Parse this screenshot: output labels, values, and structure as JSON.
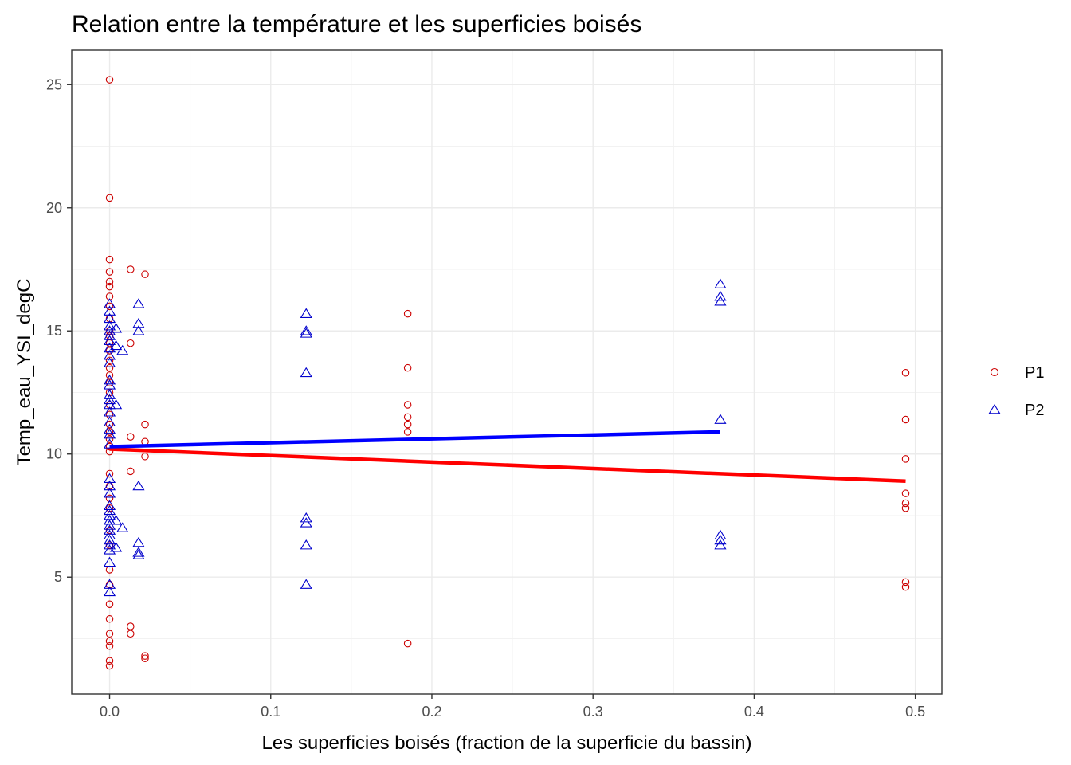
{
  "chart_data": {
    "type": "scatter",
    "title": "Relation entre la température et les superficies boisés",
    "xlabel": "Les superficies boisés (fraction de la superficie du bassin)",
    "ylabel": "Temp_eau_YSI_degC",
    "xlim": [
      -0.0235,
      0.5165
    ],
    "ylim": [
      0.25,
      26.4
    ],
    "x_ticks": [
      0.0,
      0.1,
      0.2,
      0.3,
      0.4,
      0.5
    ],
    "x_tick_labels": [
      "0.0",
      "0.1",
      "0.2",
      "0.3",
      "0.4",
      "0.5"
    ],
    "y_ticks": [
      5,
      10,
      15,
      20,
      25
    ],
    "y_tick_labels": [
      "5",
      "10",
      "15",
      "20",
      "25"
    ],
    "grid": true,
    "legend_position": "right",
    "series": [
      {
        "name": "P1",
        "marker": "circle",
        "color": "#cc0000",
        "points": [
          [
            0,
            25.2
          ],
          [
            0,
            20.4
          ],
          [
            0,
            17.9
          ],
          [
            0,
            17.4
          ],
          [
            0,
            17.0
          ],
          [
            0,
            16.8
          ],
          [
            0,
            16.4
          ],
          [
            0,
            16.0
          ],
          [
            0,
            15.5
          ],
          [
            0,
            15.0
          ],
          [
            0,
            14.8
          ],
          [
            0,
            14.5
          ],
          [
            0,
            14.2
          ],
          [
            0,
            13.8
          ],
          [
            0,
            13.5
          ],
          [
            0,
            13.2
          ],
          [
            0,
            12.9
          ],
          [
            0,
            12.5
          ],
          [
            0,
            12.0
          ],
          [
            0,
            11.6
          ],
          [
            0,
            11.2
          ],
          [
            0,
            10.9
          ],
          [
            0,
            10.6
          ],
          [
            0,
            10.3
          ],
          [
            0,
            10.1
          ],
          [
            0,
            9.2
          ],
          [
            0,
            8.7
          ],
          [
            0,
            8.2
          ],
          [
            0,
            7.8
          ],
          [
            0,
            6.9
          ],
          [
            0,
            6.3
          ],
          [
            0,
            5.3
          ],
          [
            0,
            4.7
          ],
          [
            0,
            3.9
          ],
          [
            0,
            3.3
          ],
          [
            0,
            2.7
          ],
          [
            0,
            2.4
          ],
          [
            0,
            2.2
          ],
          [
            0,
            1.6
          ],
          [
            0,
            1.4
          ],
          [
            0.013,
            17.5
          ],
          [
            0.013,
            14.5
          ],
          [
            0.013,
            10.7
          ],
          [
            0.013,
            9.3
          ],
          [
            0.013,
            3.0
          ],
          [
            0.013,
            2.7
          ],
          [
            0.022,
            17.3
          ],
          [
            0.022,
            11.2
          ],
          [
            0.022,
            10.5
          ],
          [
            0.022,
            9.9
          ],
          [
            0.022,
            1.8
          ],
          [
            0.022,
            1.7
          ],
          [
            0.185,
            15.7
          ],
          [
            0.185,
            13.5
          ],
          [
            0.185,
            12.0
          ],
          [
            0.185,
            11.5
          ],
          [
            0.185,
            11.2
          ],
          [
            0.185,
            10.9
          ],
          [
            0.185,
            2.3
          ],
          [
            0.494,
            13.3
          ],
          [
            0.494,
            11.4
          ],
          [
            0.494,
            9.8
          ],
          [
            0.494,
            8.4
          ],
          [
            0.494,
            8.0
          ],
          [
            0.494,
            7.8
          ],
          [
            0.494,
            4.8
          ],
          [
            0.494,
            4.6
          ]
        ],
        "fit": [
          [
            0,
            10.2
          ],
          [
            0.494,
            8.9
          ]
        ],
        "fit_color": "#ff0000"
      },
      {
        "name": "P2",
        "marker": "triangle",
        "color": "#0000cc",
        "points": [
          [
            0,
            16.1
          ],
          [
            0,
            15.8
          ],
          [
            0,
            15.5
          ],
          [
            0,
            15.2
          ],
          [
            0,
            15.0
          ],
          [
            0,
            14.8
          ],
          [
            0,
            14.6
          ],
          [
            0,
            14.3
          ],
          [
            0,
            14.0
          ],
          [
            0,
            13.7
          ],
          [
            0,
            13.0
          ],
          [
            0,
            12.8
          ],
          [
            0,
            12.4
          ],
          [
            0,
            12.2
          ],
          [
            0,
            12.0
          ],
          [
            0,
            11.7
          ],
          [
            0,
            11.3
          ],
          [
            0,
            11.0
          ],
          [
            0,
            10.8
          ],
          [
            0,
            10.4
          ],
          [
            0,
            9.0
          ],
          [
            0,
            8.7
          ],
          [
            0,
            8.4
          ],
          [
            0,
            7.9
          ],
          [
            0,
            7.7
          ],
          [
            0,
            7.5
          ],
          [
            0,
            7.3
          ],
          [
            0,
            7.1
          ],
          [
            0,
            6.9
          ],
          [
            0,
            6.7
          ],
          [
            0,
            6.5
          ],
          [
            0,
            6.3
          ],
          [
            0,
            6.1
          ],
          [
            0,
            5.6
          ],
          [
            0,
            4.7
          ],
          [
            0,
            4.4
          ],
          [
            0.004,
            15.1
          ],
          [
            0.004,
            14.4
          ],
          [
            0.004,
            12.0
          ],
          [
            0.004,
            7.3
          ],
          [
            0.004,
            6.2
          ],
          [
            0.008,
            14.2
          ],
          [
            0.008,
            7.0
          ],
          [
            0.018,
            16.1
          ],
          [
            0.018,
            15.3
          ],
          [
            0.018,
            15.0
          ],
          [
            0.018,
            8.7
          ],
          [
            0.018,
            6.4
          ],
          [
            0.018,
            6.0
          ],
          [
            0.018,
            5.9
          ],
          [
            0.122,
            15.7
          ],
          [
            0.122,
            15.0
          ],
          [
            0.122,
            14.9
          ],
          [
            0.122,
            13.3
          ],
          [
            0.122,
            7.4
          ],
          [
            0.122,
            7.2
          ],
          [
            0.122,
            6.3
          ],
          [
            0.122,
            4.7
          ],
          [
            0.379,
            16.9
          ],
          [
            0.379,
            16.4
          ],
          [
            0.379,
            16.2
          ],
          [
            0.379,
            11.4
          ],
          [
            0.379,
            6.7
          ],
          [
            0.379,
            6.5
          ],
          [
            0.379,
            6.3
          ]
        ],
        "fit": [
          [
            0,
            10.3
          ],
          [
            0.379,
            10.9
          ]
        ],
        "fit_color": "#0000ff"
      }
    ]
  }
}
